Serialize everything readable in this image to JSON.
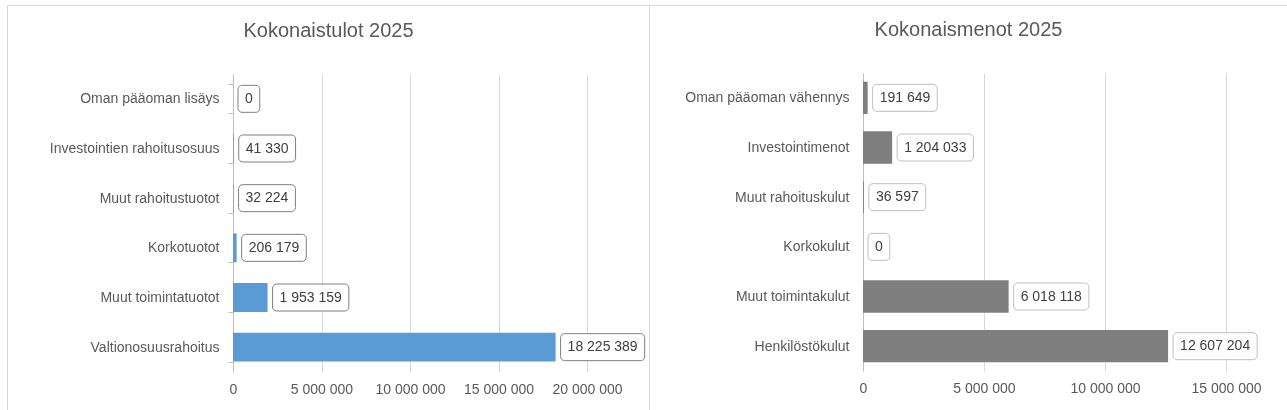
{
  "chart_data": [
    {
      "type": "bar",
      "title": "Kokonaistulot 2025",
      "orientation": "horizontal",
      "categories": [
        "Oman pääoman lisäys",
        "Investointien rahoitusosuus",
        "Muut rahoitustuotot",
        "Korkotuotot",
        "Muut toimintatuotot",
        "Valtionosuusrahoitus"
      ],
      "values": [
        0,
        41330,
        32224,
        206179,
        1953159,
        18225389
      ],
      "value_labels": [
        "0",
        "41 330",
        "32 224",
        "206 179",
        "1 953 159",
        "18 225 389"
      ],
      "color": "#5b9bd5",
      "xlim": [
        0,
        20000000
      ],
      "xticks": [
        0,
        {
          "value": 5000000,
          "label": "5 000 000"
        },
        {
          "value": 10000000,
          "label": "10 000 000"
        },
        {
          "value": 15000000,
          "label": "15 000 000"
        },
        {
          "value": 20000000,
          "label": "20 000 000"
        }
      ],
      "grid": "x"
    },
    {
      "type": "bar",
      "title": "Kokonaismenot 2025",
      "orientation": "horizontal",
      "categories": [
        "Oman pääoman vähennys",
        "Investointimenot",
        "Muut rahoituskulut",
        "Korkokulut",
        "Muut toimintakulut",
        "Henkilöstökulut"
      ],
      "values": [
        191649,
        1204033,
        36597,
        0,
        6018118,
        12607204
      ],
      "value_labels": [
        "191 649",
        "1 204 033",
        "36 597",
        "0",
        "6 018 118",
        "12 607 204"
      ],
      "color": "#7f7f7f",
      "xlim": [
        0,
        15000000
      ],
      "xticks": [
        0,
        {
          "value": 5000000,
          "label": "5 000 000"
        },
        {
          "value": 10000000,
          "label": "10 000 000"
        },
        {
          "value": 15000000,
          "label": "15 000 000"
        }
      ],
      "grid": "x"
    }
  ]
}
